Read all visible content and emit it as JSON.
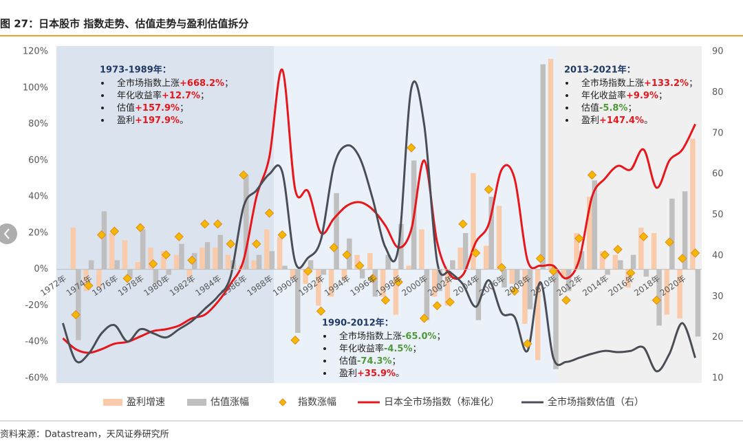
{
  "chart_data": {
    "type": "combo",
    "title": "图 27：日本股市 指数走势、估值走势与盈利估值拆分",
    "source": "资料来源：Datastream，天风证券研究所",
    "categories": [
      "1972年",
      null,
      "1974年",
      null,
      "1976年",
      null,
      "1978年",
      null,
      "1980年",
      null,
      "1982年",
      null,
      "1984年",
      null,
      "1986年",
      null,
      "1988年",
      null,
      "1990年",
      null,
      "1992年",
      null,
      "1994年",
      null,
      "1996年",
      null,
      "1998年",
      null,
      "2000年",
      null,
      "2002年",
      null,
      "2004年",
      null,
      "2006年",
      null,
      "2008年",
      null,
      "2010年",
      null,
      "2012年",
      null,
      "2014年",
      null,
      "2016年",
      null,
      "2018年",
      null,
      "2020年",
      null
    ],
    "ylim": [
      -60,
      120
    ],
    "yticks": [
      {
        "value": -60,
        "label": "-60%"
      },
      {
        "value": -40,
        "label": "-40%"
      },
      {
        "value": -20,
        "label": "-20%"
      },
      {
        "value": 0,
        "label": "0%"
      },
      {
        "value": 20,
        "label": "20%"
      },
      {
        "value": 40,
        "label": "40%"
      },
      {
        "value": 60,
        "label": "60%"
      },
      {
        "value": 80,
        "label": "80%"
      },
      {
        "value": 100,
        "label": "100%"
      },
      {
        "value": 120,
        "label": "120%"
      }
    ],
    "y2lim": [
      10,
      90
    ],
    "y2ticks": [
      10,
      20,
      30,
      40,
      50,
      60,
      70,
      80,
      90
    ],
    "grid": false,
    "legend": "bottom",
    "series": [
      {
        "name": "盈利增速",
        "type": "bar",
        "color": "#f9cbaa",
        "values": [
          null,
          23,
          -12,
          -10,
          20,
          16,
          4,
          12,
          10,
          8,
          -4,
          12,
          12,
          8,
          2,
          5,
          22,
          18,
          -5,
          -8,
          -20,
          -15,
          -6,
          8,
          9,
          -15,
          -25,
          2,
          22,
          -15,
          -20,
          12,
          53,
          13,
          35,
          -8,
          -30,
          -50,
          116,
          -5,
          20,
          40,
          10,
          8,
          -10,
          23,
          20,
          -25,
          -27,
          72
        ]
      },
      {
        "name": "估值涨幅",
        "type": "bar",
        "color": "#bfbfbf",
        "values": [
          null,
          -39,
          5,
          32,
          5,
          -5,
          22,
          -8,
          -3,
          14,
          9,
          15,
          19,
          5,
          52,
          8,
          10,
          2,
          -35,
          5,
          -3,
          42,
          17,
          -5,
          -15,
          8,
          25,
          60,
          -28,
          -12,
          5,
          20,
          -28,
          40,
          -10,
          -8,
          -22,
          113,
          -55,
          -12,
          10,
          49,
          -3,
          5,
          8,
          -4,
          -31,
          39,
          43,
          -37
        ]
      },
      {
        "name": "指数涨幅",
        "type": "scatter",
        "color": "#f5b800",
        "values": [
          null,
          -25,
          -9,
          19,
          21,
          -5,
          23,
          3,
          8,
          18,
          5,
          25,
          25,
          14,
          52,
          14,
          31,
          19,
          -39,
          -1,
          -23,
          12,
          8,
          2,
          -5,
          -17,
          -7,
          67,
          -27,
          -20,
          -18,
          25,
          9,
          44,
          1,
          -12,
          -41,
          6,
          -1,
          -17,
          17,
          52,
          8,
          11,
          -2,
          18,
          -17,
          15,
          6,
          9
        ]
      },
      {
        "name": "日本全市场指数（标准化）",
        "type": "line",
        "color": "#e8161b",
        "values": [
          -38,
          -44,
          -46,
          -44,
          -41,
          -40,
          -37,
          -34,
          -33,
          -31,
          -27,
          -25,
          -18,
          -8,
          5,
          40,
          62,
          110,
          44,
          43,
          20,
          28,
          35,
          37,
          33,
          24,
          12,
          22,
          60,
          15,
          -3,
          -3,
          15,
          25,
          55,
          50,
          5,
          2,
          2,
          -5,
          5,
          40,
          50,
          57,
          55,
          66,
          45,
          60,
          66,
          80
        ]
      },
      {
        "name": "全市场指数估值（右）",
        "type": "line",
        "axis": "y2",
        "color": "#4a4d55",
        "values": [
          23.5,
          14.3,
          16,
          21,
          23,
          19,
          22,
          21,
          20,
          22,
          24,
          27,
          30,
          35,
          52,
          56,
          60,
          60.5,
          38.5,
          39.5,
          44,
          62,
          67,
          64,
          54,
          42,
          42,
          81,
          72,
          38.5,
          36,
          33,
          27.5,
          34,
          26,
          25,
          16.7,
          33.5,
          15,
          14,
          15,
          16,
          16.7,
          16.4,
          16.7,
          17.5,
          11.7,
          16,
          23.5,
          15
        ]
      }
    ],
    "annotations": [
      {
        "title": "1973-1989年：",
        "items": [
          {
            "label": "全市场指数上涨",
            "value": "+668.2%",
            "end": "；"
          },
          {
            "label": "年化收益率",
            "value": "+12.7%",
            "end": "；"
          },
          {
            "label": "估值",
            "value": "+157.9%",
            "end": "；"
          },
          {
            "label": "盈利",
            "value": "+197.9%",
            "end": "。"
          }
        ]
      },
      {
        "title": "1990-2012年：",
        "items": [
          {
            "label": "全市场指数上涨",
            "value": "-65.0%",
            "end": "；"
          },
          {
            "label": "年化收益率",
            "value": "-4.5%",
            "end": "；"
          },
          {
            "label": "估值",
            "value": "-74.3%",
            "end": "；"
          },
          {
            "label": "盈利",
            "value": "+35.9%",
            "end": "。"
          }
        ]
      },
      {
        "title": "2013-2021年：",
        "items": [
          {
            "label": "全市场指数上涨",
            "value": "+133.2%",
            "end": "；"
          },
          {
            "label": "年化收益率",
            "value": "+9.9%",
            "end": "；"
          },
          {
            "label": "估值",
            "value": "-5.8%",
            "end": "；"
          },
          {
            "label": "盈利",
            "value": "+147.4%",
            "end": "。"
          }
        ]
      }
    ]
  }
}
